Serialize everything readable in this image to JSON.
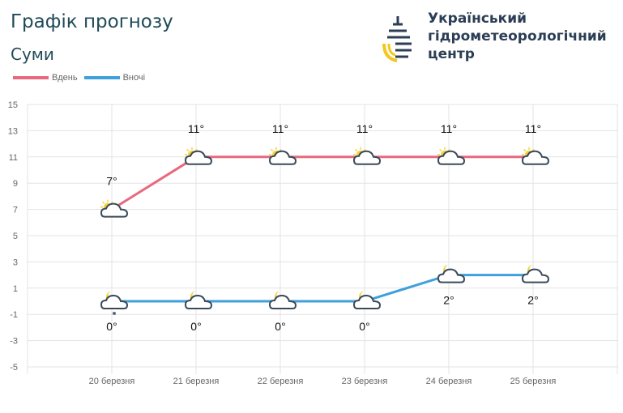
{
  "header": {
    "title": "Графік прогнозу",
    "city": "Суми",
    "org_lines": [
      "Український",
      "гідрометеорологічний",
      "центр"
    ]
  },
  "chart_data": {
    "type": "line",
    "categories": [
      "20 березня",
      "21 березня",
      "22 березня",
      "23 березня",
      "24 березня",
      "25 березня"
    ],
    "series": [
      {
        "name": "Вдень",
        "color": "#e8697f",
        "values": [
          7,
          11,
          11,
          11,
          11,
          11
        ],
        "labels": [
          "7°",
          "11°",
          "11°",
          "11°",
          "11°",
          "11°"
        ],
        "icons": [
          "sun-cloud",
          "sun-cloud",
          "sun-cloud",
          "sun-cloud",
          "sun-cloud",
          "sun-cloud"
        ]
      },
      {
        "name": "Вночі",
        "color": "#3fa0dc",
        "values": [
          0,
          0,
          0,
          0,
          2,
          2
        ],
        "labels": [
          "0°",
          "0°",
          "0°",
          "0°",
          "2°",
          "2°"
        ],
        "icons": [
          "moon-cloud-rain",
          "moon-cloud",
          "moon-cloud",
          "moon-cloud",
          "moon-cloud",
          "moon-cloud"
        ]
      }
    ],
    "ylim": [
      -5,
      15
    ],
    "yticks": [
      15,
      13,
      11,
      9,
      7,
      5,
      3,
      1,
      -1,
      -3,
      -5
    ],
    "grid": true,
    "legend": "top-left"
  }
}
